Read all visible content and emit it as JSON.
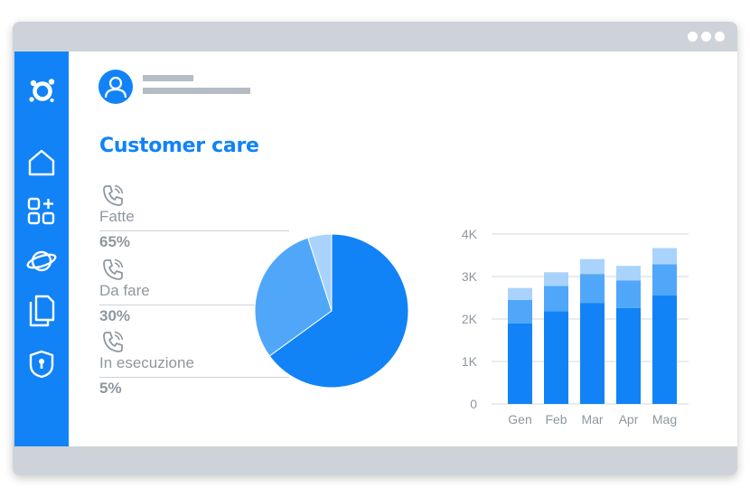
{
  "window": {
    "controls": [
      "dot",
      "dot",
      "dot"
    ]
  },
  "sidebar": {
    "items": [
      {
        "icon": "logo-icon"
      },
      {
        "icon": "home-icon"
      },
      {
        "icon": "dashboard-add-icon",
        "active": true
      },
      {
        "icon": "planet-icon"
      },
      {
        "icon": "documents-icon"
      },
      {
        "icon": "shield-lock-icon"
      }
    ]
  },
  "header": {
    "title": "Customer care"
  },
  "stats": [
    {
      "label": "Fatte",
      "value": "65%",
      "icon": "phone-icon"
    },
    {
      "label": "Da fare",
      "value": "30%",
      "icon": "phone-icon"
    },
    {
      "label": "In esecuzione",
      "value": "5%",
      "icon": "phone-icon"
    }
  ],
  "colors": {
    "accent": "#1183f7",
    "mid": "#50a7f9",
    "light": "#a9d3fc",
    "text_muted": "#8e979f",
    "frame": "#cdd3d9"
  },
  "chart_data": [
    {
      "type": "pie",
      "categories": [
        "Fatte",
        "Da fare",
        "In esecuzione"
      ],
      "values": [
        65,
        30,
        5
      ],
      "colors": [
        "#1183f7",
        "#50a7f9",
        "#a9d3fc"
      ]
    },
    {
      "type": "bar",
      "stacked": true,
      "categories": [
        "Gen",
        "Feb",
        "Mar",
        "Apr",
        "Mag"
      ],
      "series": [
        {
          "values": [
            1900,
            2180,
            2380,
            2260,
            2560
          ],
          "color": "#1183f7"
        },
        {
          "values": [
            550,
            600,
            680,
            650,
            730
          ],
          "color": "#50a7f9"
        },
        {
          "values": [
            280,
            320,
            350,
            340,
            380
          ],
          "color": "#a9d3fc"
        }
      ],
      "yticks": [
        "0",
        "1K",
        "2K",
        "3K",
        "4K"
      ],
      "ylim": [
        0,
        4000
      ],
      "grid": true
    }
  ]
}
